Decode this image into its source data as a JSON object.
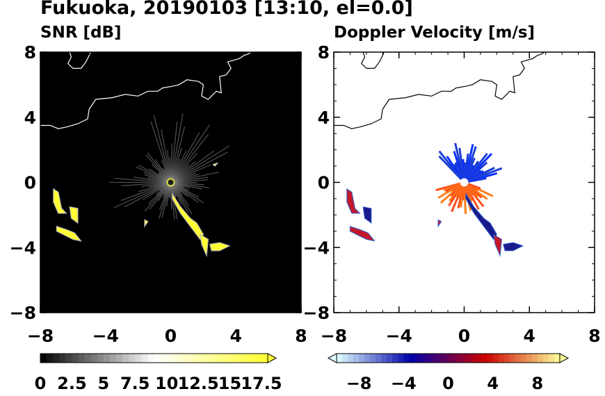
{
  "figure": {
    "title": "Fukuoka, 20190103 [13:10, el=0.0]"
  },
  "chart_data": [
    {
      "type": "heatmap",
      "title": "SNR [dB]",
      "xlim": [
        -8,
        8
      ],
      "ylim": [
        -8,
        8
      ],
      "x_ticks": [
        "−8",
        "−4",
        "0",
        "4",
        "8"
      ],
      "y_ticks": [
        "8",
        "4",
        "0",
        "−4",
        "−8"
      ],
      "background_color": "#000000",
      "coastline_color": "#ffffff",
      "colorbar": {
        "range": [
          0,
          18
        ],
        "extend": "max",
        "colors": [
          "#000000",
          "#ffffff",
          "#ffff33"
        ],
        "tick_labels": [
          "0",
          "2.5",
          "5",
          "7.5",
          "10",
          "12.5",
          "15",
          "17.5"
        ],
        "tick_values": [
          0,
          2.5,
          5,
          7.5,
          10,
          12.5,
          15,
          17.5
        ]
      }
    },
    {
      "type": "heatmap",
      "title": "Doppler Velocity [m/s]",
      "xlim": [
        -8,
        8
      ],
      "ylim": [
        -8,
        8
      ],
      "x_ticks": [
        "−8",
        "−4",
        "0",
        "4",
        "8"
      ],
      "y_ticks": [
        "8",
        "4",
        "0",
        "−4",
        "−8"
      ],
      "background_color": "#ffffff",
      "coastline_color": "#000000",
      "colorbar": {
        "range": [
          -10,
          10
        ],
        "extend": "both",
        "colors": [
          "#e0ffff",
          "#0000aa",
          "#cc0000",
          "#ffff99"
        ],
        "tick_labels": [
          "−8",
          "−4",
          "0",
          "4",
          "8"
        ],
        "tick_values": [
          -8,
          -4,
          0,
          4,
          8
        ]
      }
    }
  ]
}
